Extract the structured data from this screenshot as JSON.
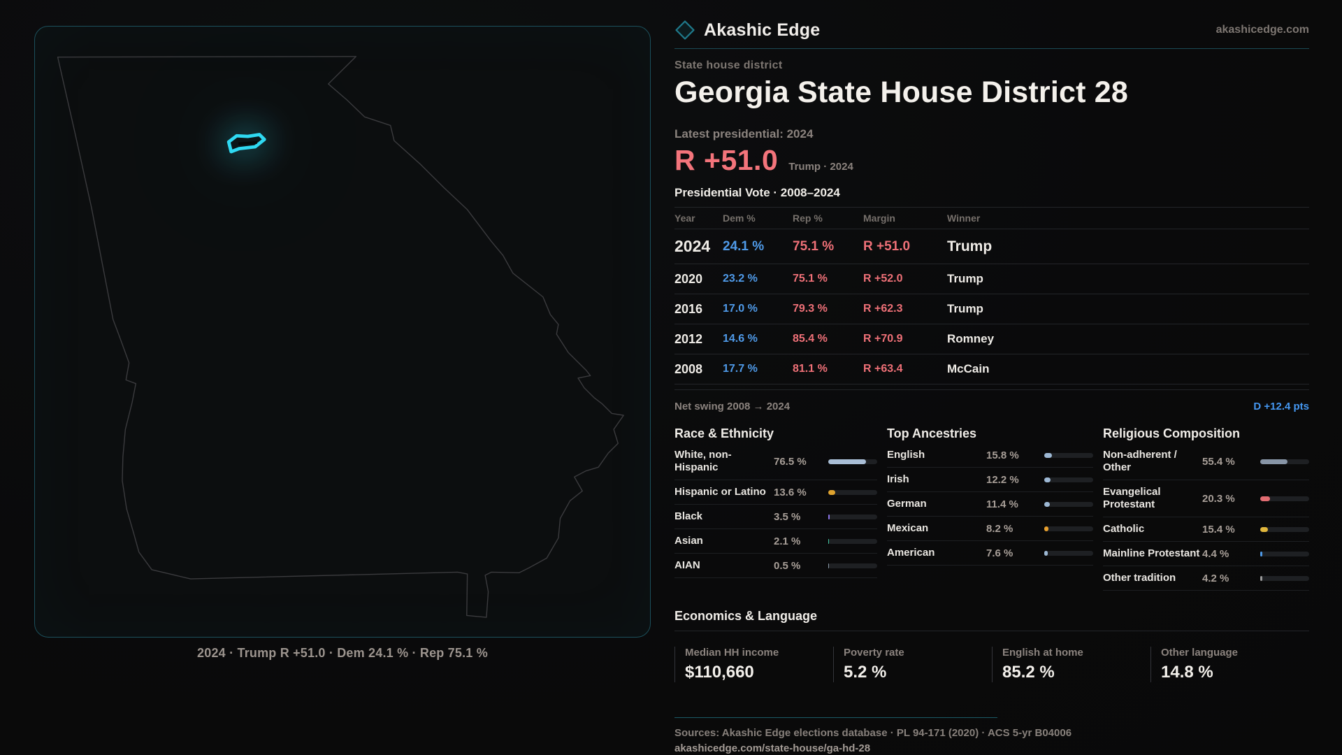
{
  "brand": {
    "name": "Akashic Edge",
    "domain": "akashicedge.com"
  },
  "kicker": "State house district",
  "title": "Georgia State House District 28",
  "latest": {
    "label": "Latest presidential: 2024",
    "margin": "R +51.0",
    "note": "Trump · 2024"
  },
  "table": {
    "title": "Presidential Vote · 2008–2024",
    "columns": [
      "Year",
      "Dem %",
      "Rep %",
      "Margin",
      "Winner"
    ],
    "rows": [
      {
        "year": "2024",
        "dem": "24.1 %",
        "rep": "75.1 %",
        "margin": "R +51.0",
        "winner": "Trump"
      },
      {
        "year": "2020",
        "dem": "23.2 %",
        "rep": "75.1 %",
        "margin": "R +52.0",
        "winner": "Trump"
      },
      {
        "year": "2016",
        "dem": "17.0 %",
        "rep": "79.3 %",
        "margin": "R +62.3",
        "winner": "Trump"
      },
      {
        "year": "2012",
        "dem": "14.6 %",
        "rep": "85.4 %",
        "margin": "R +70.9",
        "winner": "Romney"
      },
      {
        "year": "2008",
        "dem": "17.7 %",
        "rep": "81.1 %",
        "margin": "R +63.4",
        "winner": "McCain"
      }
    ],
    "net_swing_label": "Net swing 2008 → 2024",
    "net_swing_value": "D +12.4 pts"
  },
  "demographics": [
    {
      "title": "Race & Ethnicity",
      "rows": [
        {
          "label": "White, non-Hispanic",
          "value": "76.5 %",
          "pct": 76.5,
          "color": "#a9bed6"
        },
        {
          "label": "Hispanic or Latino",
          "value": "13.6 %",
          "pct": 13.6,
          "color": "#dfa32f"
        },
        {
          "label": "Black",
          "value": "3.5 %",
          "pct": 3.5,
          "color": "#8b74e8"
        },
        {
          "label": "Asian",
          "value": "2.1 %",
          "pct": 2.1,
          "color": "#41c9a2"
        },
        {
          "label": "AIAN",
          "value": "0.5 %",
          "pct": 0.5,
          "color": "#8a9aa8"
        }
      ]
    },
    {
      "title": "Top Ancestries",
      "rows": [
        {
          "label": "English",
          "value": "15.8 %",
          "pct": 15.8,
          "color": "#9db8d4"
        },
        {
          "label": "Irish",
          "value": "12.2 %",
          "pct": 12.2,
          "color": "#9db8d4"
        },
        {
          "label": "German",
          "value": "11.4 %",
          "pct": 11.4,
          "color": "#9db8d4"
        },
        {
          "label": "Mexican",
          "value": "8.2 %",
          "pct": 8.2,
          "color": "#e8a02e"
        },
        {
          "label": "American",
          "value": "7.6 %",
          "pct": 7.6,
          "color": "#9db8d4"
        }
      ]
    },
    {
      "title": "Religious Composition",
      "rows": [
        {
          "label": "Non-adherent / Other",
          "value": "55.4 %",
          "pct": 55.4,
          "color": "#8795a6"
        },
        {
          "label": "Evangelical Protestant",
          "value": "20.3 %",
          "pct": 20.3,
          "color": "#e26d72"
        },
        {
          "label": "Catholic",
          "value": "15.4 %",
          "pct": 15.4,
          "color": "#e0b63c"
        },
        {
          "label": "Mainline Protestant",
          "value": "4.4 %",
          "pct": 4.4,
          "color": "#4f9ae8"
        },
        {
          "label": "Other tradition",
          "value": "4.2 %",
          "pct": 4.2,
          "color": "#9a9a9a"
        }
      ]
    }
  ],
  "economics": {
    "title": "Economics & Language",
    "stats": [
      {
        "label": "Median HH income",
        "value": "$110,660"
      },
      {
        "label": "Poverty rate",
        "value": "5.2 %"
      },
      {
        "label": "English at home",
        "value": "85.2 %"
      },
      {
        "label": "Other language",
        "value": "14.8 %"
      }
    ]
  },
  "map": {
    "caption": "2024 · Trump  R +51.0 · Dem 24.1 % · Rep 75.1 %"
  },
  "footer": {
    "sources": "Sources: Akashic Edge elections database · PL 94-171 (2020) · ACS 5-yr B04006",
    "permalink": "akashicedge.com/state-house/ga-hd-28"
  },
  "colors": {
    "dem_blue": "#4f9ae8",
    "rep_red": "#ee7077",
    "district_cyan": "#2fd9f2",
    "accent_teal": "#1c505c"
  }
}
